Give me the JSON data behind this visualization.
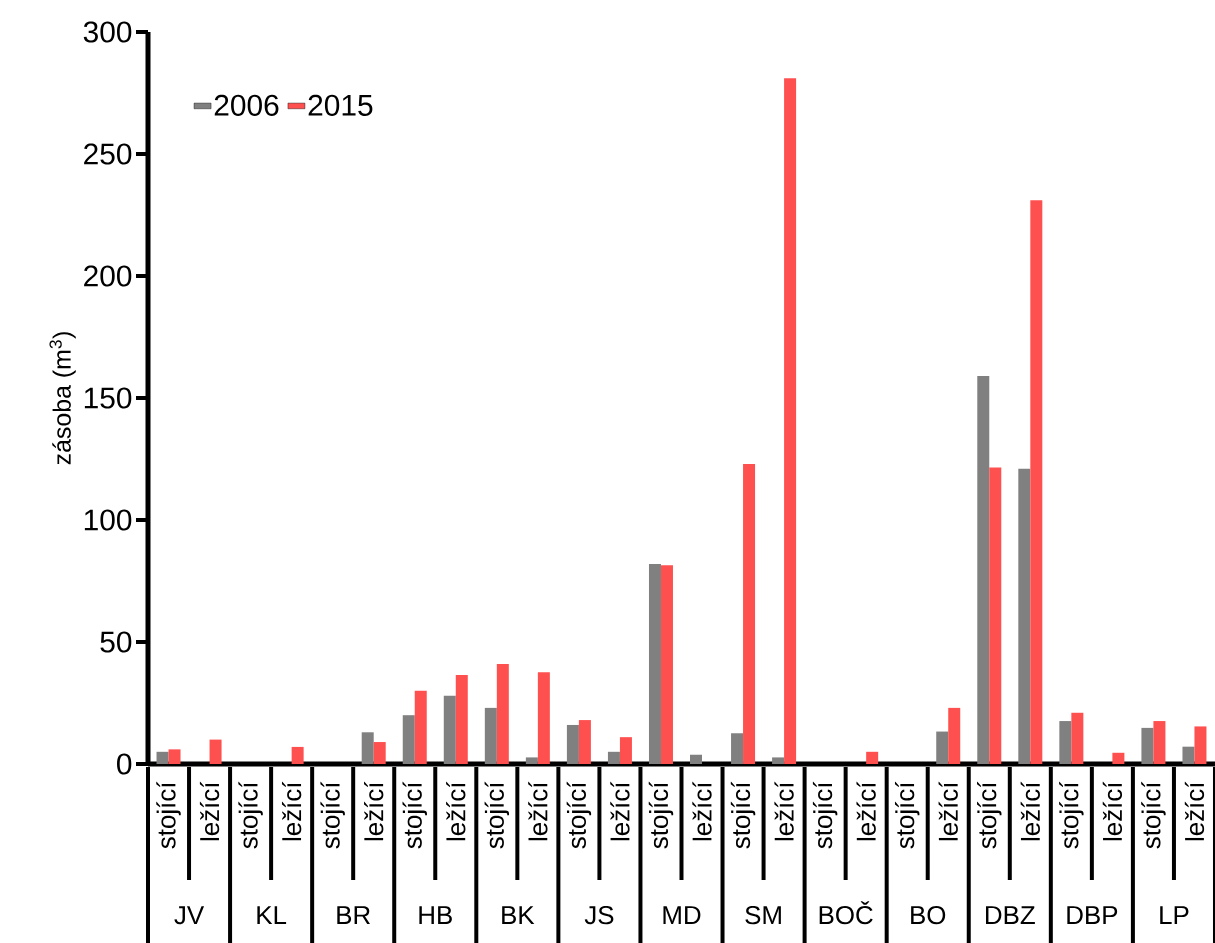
{
  "chart_data": {
    "type": "bar",
    "ylabel": "zásoba (m$^{3}$)",
    "categories": [
      "stojící",
      "ležící",
      "stojící",
      "ležící",
      "stojící",
      "ležící",
      "stojící",
      "ležící",
      "stojící",
      "ležící",
      "stojící",
      "ležící",
      "stojící",
      "ležící",
      "stojící",
      "ležící",
      "stojící",
      "ležící",
      "stojící",
      "ležící",
      "stojící",
      "ležící",
      "stojící",
      "ležící",
      "stojící",
      "ležící"
    ],
    "annotations": [
      "JV",
      "KL",
      "BR",
      "HB",
      "BK",
      "JS",
      "MD",
      "SM",
      "BOČ",
      "BO",
      "DBZ",
      "DBP",
      "LP"
    ],
    "series": [
      {
        "name": "2006",
        "color": "#808080",
        "values": [
          5,
          0,
          0,
          0,
          0,
          13,
          20,
          28,
          23,
          2.7,
          16,
          5,
          82,
          3.8,
          12.6,
          2.7,
          0,
          0,
          0,
          13.3,
          159,
          121,
          17.6,
          0,
          14.8,
          7.1
        ]
      },
      {
        "name": "2015",
        "color": "#ff5050",
        "values": [
          6,
          10,
          0,
          7,
          0,
          9,
          30,
          36.5,
          41,
          37.6,
          18,
          11,
          81.5,
          0,
          123,
          281,
          0,
          5,
          0,
          23,
          121.5,
          231,
          21,
          4.6,
          17.6,
          15.4
        ]
      }
    ],
    "ylim": [
      0,
      300
    ],
    "yticks": [
      0,
      50,
      100,
      150,
      200,
      250,
      300
    ],
    "grid": false,
    "legend": "top left"
  }
}
